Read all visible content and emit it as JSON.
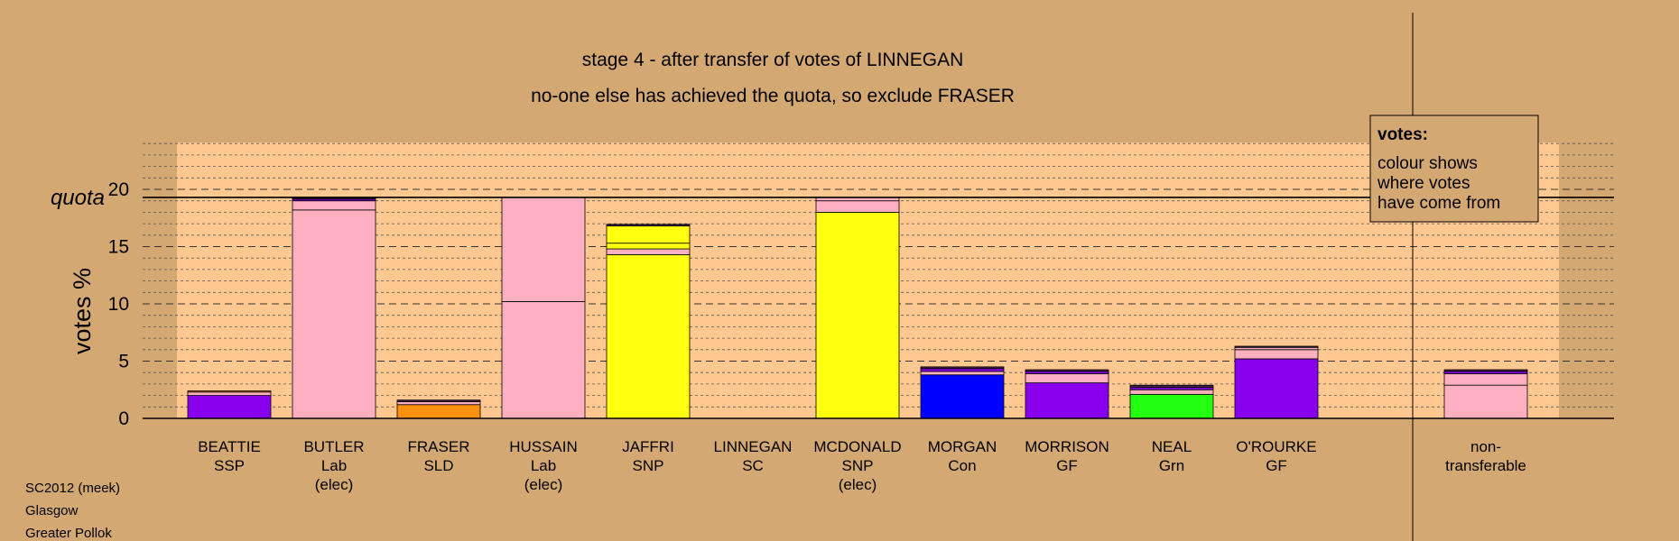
{
  "chart_data": {
    "type": "bar",
    "title": "stage 4 - after transfer of votes of LINNEGAN",
    "subtitle": "no-one else has achieved the quota, so exclude FRASER",
    "ylabel": "votes %",
    "ylim": [
      0,
      24
    ],
    "yticks": [
      0,
      5,
      10,
      15,
      20
    ],
    "quota": 19.3,
    "quota_label": "quota",
    "legend": {
      "title": "votes:",
      "lines": [
        "colour shows",
        "where votes",
        "have come from"
      ],
      "placement": "top-right"
    },
    "candidates": [
      {
        "name": "BEATTIE",
        "party": "SSP",
        "status": "",
        "segments": [
          {
            "value": 2.0,
            "color": "#8800ee"
          },
          {
            "value": 0.3,
            "color": "#ffb0c0"
          },
          {
            "value": 0.1,
            "color": "#ff9010"
          }
        ]
      },
      {
        "name": "BUTLER",
        "party": "Lab",
        "status": "(elec)",
        "segments": [
          {
            "value": 18.2,
            "color": "#ffb0c0"
          },
          {
            "value": 0.8,
            "color": "#ffb0c0"
          },
          {
            "value": 0.15,
            "color": "#8800ee"
          },
          {
            "value": 0.15,
            "color": "#442244"
          }
        ]
      },
      {
        "name": "FRASER",
        "party": "SLD",
        "status": "",
        "segments": [
          {
            "value": 1.2,
            "color": "#ff9010"
          },
          {
            "value": 0.25,
            "color": "#ffb0c0"
          },
          {
            "value": 0.15,
            "color": "#442244"
          }
        ]
      },
      {
        "name": "HUSSAIN",
        "party": "Lab",
        "status": "(elec)",
        "segments": [
          {
            "value": 10.2,
            "color": "#ffb0c0"
          },
          {
            "value": 9.1,
            "color": "#ffb0c0"
          }
        ]
      },
      {
        "name": "JAFFRI",
        "party": "SNP",
        "status": "",
        "segments": [
          {
            "value": 14.3,
            "color": "#ffff10"
          },
          {
            "value": 0.5,
            "color": "#ffb0c0"
          },
          {
            "value": 0.5,
            "color": "#ffff10"
          },
          {
            "value": 1.5,
            "color": "#ffff10"
          },
          {
            "value": 0.15,
            "color": "#442244"
          }
        ]
      },
      {
        "name": "LINNEGAN",
        "party": "SC",
        "status": "",
        "segments": []
      },
      {
        "name": "MCDONALD",
        "party": "SNP",
        "status": "(elec)",
        "segments": [
          {
            "value": 18.0,
            "color": "#ffff10"
          },
          {
            "value": 1.0,
            "color": "#ffb0c0"
          },
          {
            "value": 0.3,
            "color": "#ffb0c0"
          }
        ]
      },
      {
        "name": "MORGAN",
        "party": "Con",
        "status": "",
        "segments": [
          {
            "value": 3.8,
            "color": "#0000ff"
          },
          {
            "value": 0.3,
            "color": "#ffb0c0"
          },
          {
            "value": 0.25,
            "color": "#8800ee"
          },
          {
            "value": 0.15,
            "color": "#442244"
          }
        ]
      },
      {
        "name": "MORRISON",
        "party": "GF",
        "status": "",
        "segments": [
          {
            "value": 3.1,
            "color": "#8800ee"
          },
          {
            "value": 0.8,
            "color": "#ffb0c0"
          },
          {
            "value": 0.2,
            "color": "#8800ee"
          },
          {
            "value": 0.15,
            "color": "#442244"
          }
        ]
      },
      {
        "name": "NEAL",
        "party": "Grn",
        "status": "",
        "segments": [
          {
            "value": 2.1,
            "color": "#22ff10"
          },
          {
            "value": 0.4,
            "color": "#ffb0c0"
          },
          {
            "value": 0.2,
            "color": "#8800ee"
          },
          {
            "value": 0.2,
            "color": "#442244"
          }
        ]
      },
      {
        "name": "O'ROURKE",
        "party": "GF",
        "status": "",
        "segments": [
          {
            "value": 5.2,
            "color": "#8800ee"
          },
          {
            "value": 0.8,
            "color": "#ffb0c0"
          },
          {
            "value": 0.2,
            "color": "#ffb0c0"
          },
          {
            "value": 0.1,
            "color": "#442244"
          }
        ]
      },
      {
        "name": "",
        "party": "",
        "status": "",
        "segments": []
      },
      {
        "name": "non-",
        "party": "transferable",
        "status": "",
        "segments": [
          {
            "value": 2.9,
            "color": "#ffb0c0"
          },
          {
            "value": 1.0,
            "color": "#ffb0c0"
          },
          {
            "value": 0.2,
            "color": "#8800ee"
          },
          {
            "value": 0.15,
            "color": "#442244"
          }
        ]
      }
    ]
  },
  "footer": {
    "lines": [
      "SC2012 (meek)",
      "Glasgow",
      "Greater Pollok"
    ]
  },
  "colors": {
    "background": "#d4a872",
    "plot_area": "#ffc890"
  }
}
